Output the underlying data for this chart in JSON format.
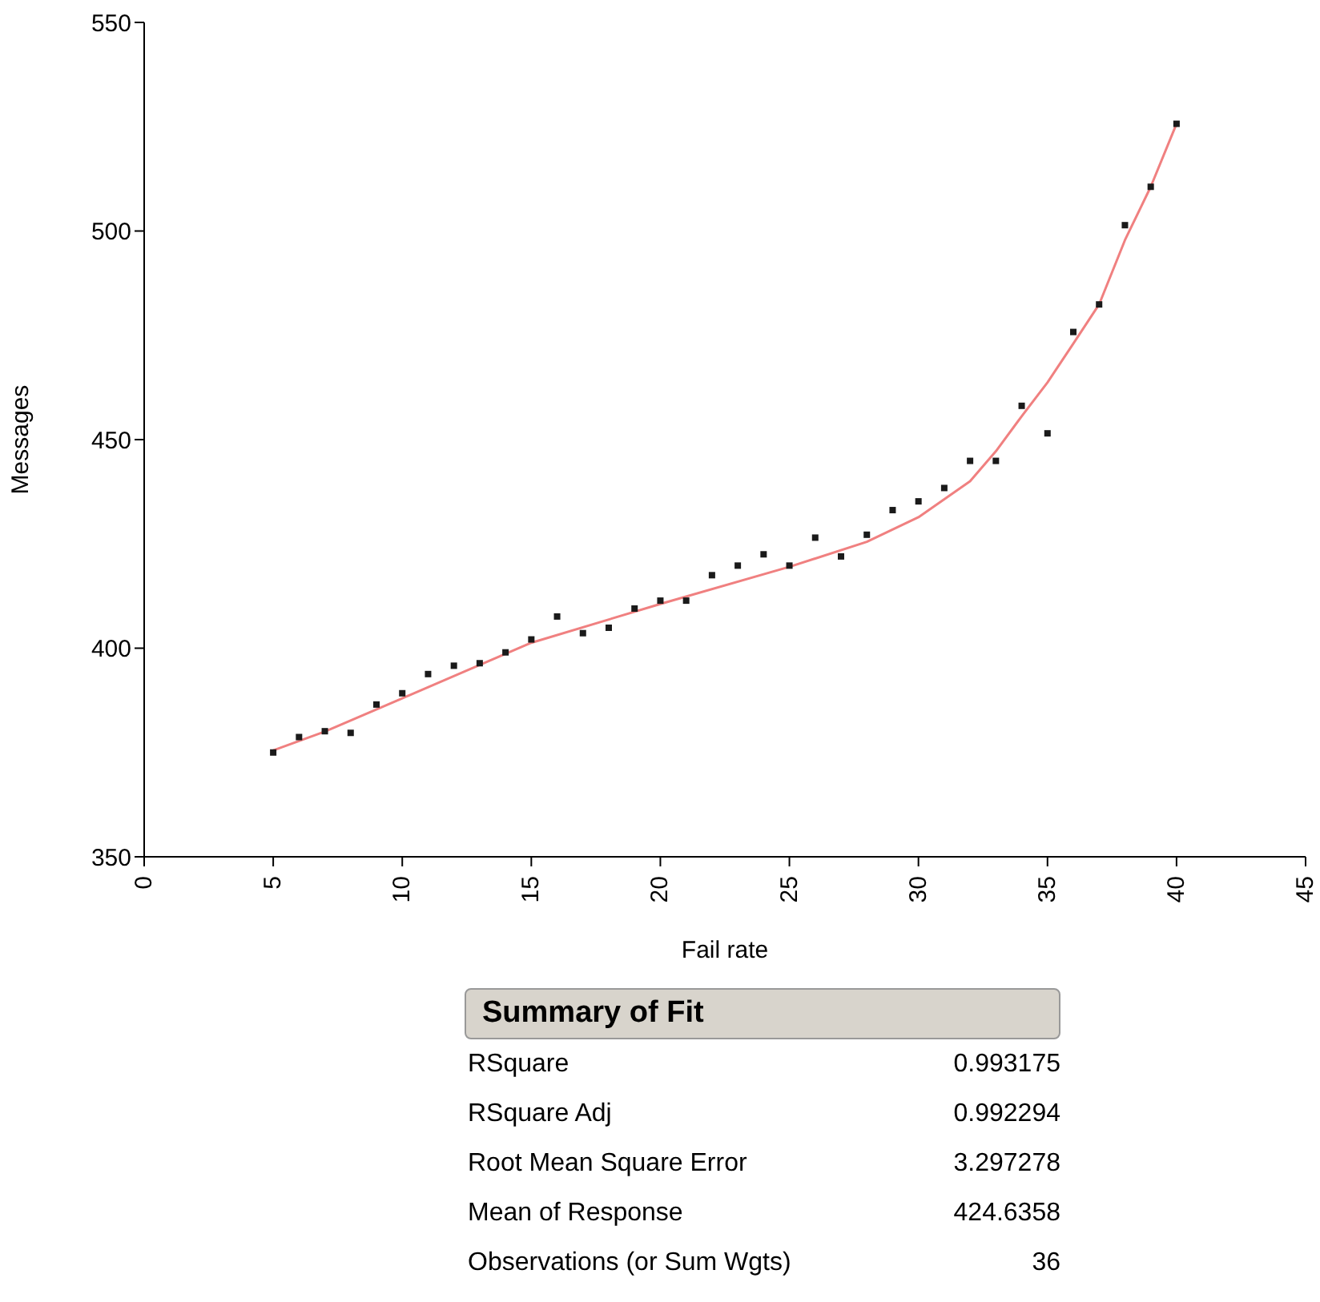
{
  "chart_data": {
    "type": "scatter",
    "xlabel": "Fail rate",
    "ylabel": "Messages",
    "xlim": [
      0,
      45
    ],
    "xticks": [
      0,
      5,
      10,
      15,
      20,
      25,
      30,
      35,
      40,
      45
    ],
    "ylim": [
      350,
      550
    ],
    "yticks": [
      350,
      400,
      450,
      500,
      550
    ],
    "grid": false,
    "series": [
      {
        "color": "#1a1a1a",
        "marker": "square",
        "x": [
          5,
          6,
          7,
          8,
          9,
          10,
          11,
          12,
          13,
          14,
          15,
          16,
          17,
          18,
          19,
          20,
          21,
          22,
          23,
          24,
          25,
          26,
          27,
          28,
          29,
          30,
          31,
          32,
          33,
          34,
          35,
          36,
          37,
          38,
          39,
          40
        ],
        "values": [
          375,
          378.7,
          380.1,
          379.7,
          386.5,
          389.2,
          393.8,
          395.8,
          396.4,
          399,
          402.1,
          407.6,
          403.6,
          404.9,
          409.5,
          411.4,
          411.4,
          417.5,
          419.8,
          422.5,
          419.8,
          426.5,
          422,
          427.2,
          433.1,
          435.2,
          438.4,
          444.9,
          444.9,
          458.1,
          451.5,
          475.8,
          482.4,
          501.4,
          510.6,
          525.7
        ]
      },
      {
        "type": "line",
        "color": "#f08080",
        "marker": "none",
        "x": [
          5,
          7,
          10,
          15,
          20,
          25,
          28,
          30,
          32,
          33,
          34,
          35,
          36,
          37,
          38,
          39,
          40
        ],
        "values": [
          375.5,
          380,
          388,
          401.3,
          410.6,
          419.5,
          425.5,
          431.4,
          440,
          447.2,
          455.6,
          463.7,
          473,
          482.4,
          497.8,
          510.6,
          525.7
        ]
      }
    ],
    "annotations": [
      "Summary of Fit",
      "RSquare",
      "0.993175",
      "RSquare Adj",
      "0.992294",
      "Root Mean Square Error",
      "3.297278",
      "Mean of Response",
      "424.6358",
      "Observations (or Sum Wgts)",
      "36"
    ]
  }
}
